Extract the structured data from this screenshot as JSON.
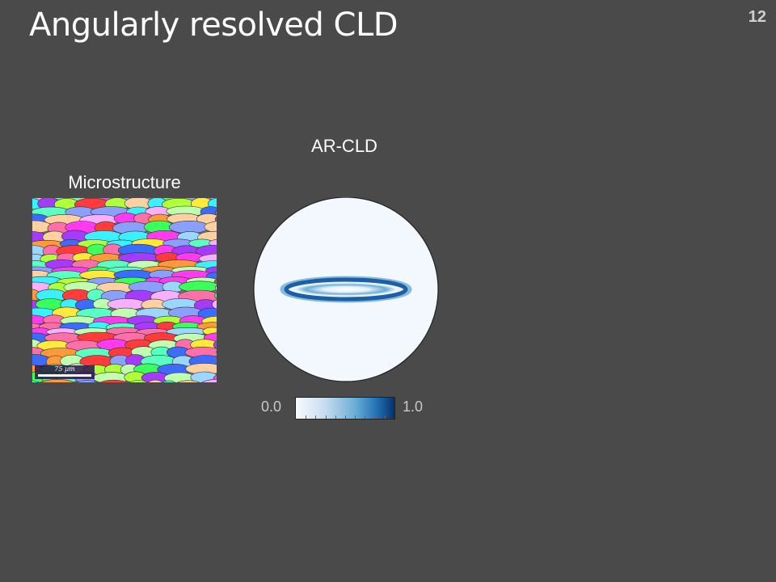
{
  "slide": {
    "title": "Angularly resolved CLD",
    "page_number": "12"
  },
  "microstructure": {
    "caption": "Microstructure",
    "scalebar_label": "75 µm"
  },
  "ar_cld": {
    "caption": "AR-CLD"
  },
  "colorbar": {
    "min_label": "0.0",
    "max_label": "1.0",
    "colormap": "Blues"
  },
  "colors": {
    "background": "#4a4a4a",
    "title": "#ffffff",
    "disc": "#f2f8fd",
    "ring": "#1f63a8"
  }
}
